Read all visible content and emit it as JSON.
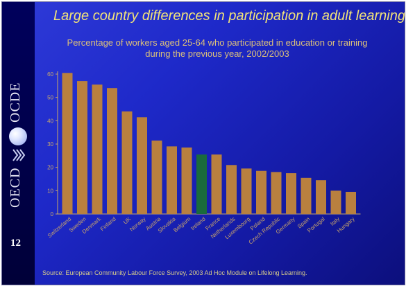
{
  "slide": {
    "title": "Large country differences in participation in adult learning",
    "subtitle_line1": "Percentage of workers aged 25-64 who participated in education or training",
    "subtitle_line2": "during the previous year, 2002/2003",
    "source": "Source: European Community Labour Force Survey, 2003 Ad Hoc Module on Lifelong Learning.",
    "page_number": "12",
    "brand_top": "OCDE",
    "brand_bottom": "OECD"
  },
  "colors": {
    "bar": "#b9803f",
    "highlight_bar": "#1a6b3c",
    "axis": "#c9a96a",
    "tick_label": "#c9a96a",
    "category_label": "#caa56a"
  },
  "chart_data": {
    "type": "bar",
    "title": "Percentage of workers aged 25-64 who participated in education or training during the previous year, 2002/2003",
    "xlabel": "",
    "ylabel": "",
    "ylim": [
      0,
      60
    ],
    "yticks": [
      0,
      10,
      20,
      30,
      40,
      50,
      60
    ],
    "grid": false,
    "highlight": "Ireland",
    "categories": [
      "Switzerland",
      "Sweden",
      "Denmark",
      "Finland",
      "UK",
      "Norway",
      "Austria",
      "Slovakia",
      "Belgium",
      "Ireland",
      "France",
      "Netherlands",
      "Luxembourg",
      "Poland",
      "Czech Republic",
      "Germany",
      "Spain",
      "Portugal",
      "Italy",
      "Hungary"
    ],
    "values": [
      60.5,
      57,
      55.5,
      54,
      44,
      41.5,
      31.5,
      29,
      28.5,
      25.5,
      25.5,
      21,
      19.5,
      18.5,
      18,
      17.5,
      15.5,
      14.5,
      10,
      9.5
    ]
  }
}
